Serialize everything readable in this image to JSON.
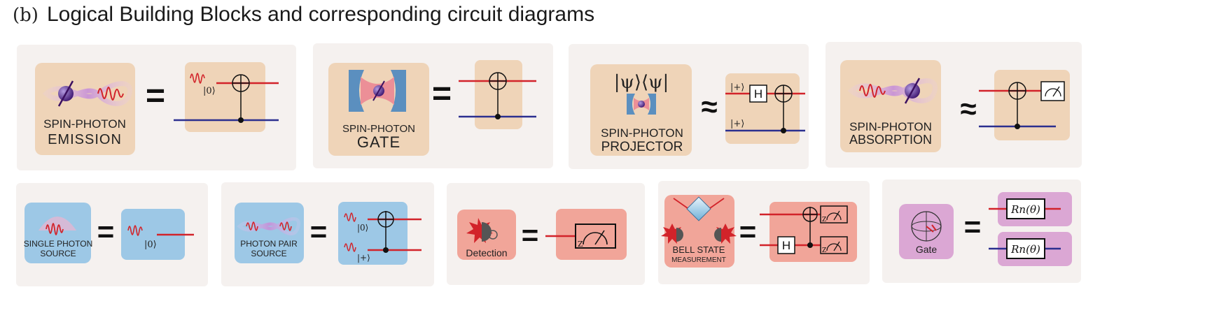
{
  "header": {
    "label": "(b)",
    "title": "Logical Building Blocks and corresponding circuit diagrams"
  },
  "colors": {
    "panel_bg": "#f5f1ef",
    "tan_box": "#efd4b8",
    "blue_box": "#9dc8e6",
    "salmon_box": "#f1a599",
    "pink_box": "#dba7d4",
    "red_wire": "#d2232a",
    "blue_wire": "#2b2f8f",
    "spin_purple": "#5b2a8c"
  },
  "top_row": [
    {
      "line1": "SPIN-PHOTON",
      "line2": "EMISSION",
      "relation": "=",
      "ket_top": "|0⟩"
    },
    {
      "line1": "SPIN-PHOTON",
      "line2": "GATE",
      "relation": "="
    },
    {
      "projector_label": "|ψ⟩⟨ψ|",
      "line1": "SPIN-PHOTON",
      "line2": "PROJECTOR",
      "relation": "≈",
      "ket_top": "|+⟩",
      "ket_bottom": "|+⟩",
      "gate": "H"
    },
    {
      "line1": "SPIN-PHOTON",
      "line2": "ABSORPTION",
      "relation": "≈"
    }
  ],
  "bottom_row": [
    {
      "line1": "SINGLE PHOTON",
      "line2": "SOURCE",
      "relation": "=",
      "ket": "|0⟩"
    },
    {
      "line1": "PHOTON PAIR",
      "line2": "SOURCE",
      "relation": "=",
      "ket_top": "|0⟩",
      "ket_bottom": "|+⟩"
    },
    {
      "label": "Detection",
      "relation": "=",
      "meter_axis": "Z"
    },
    {
      "line1": "BELL STATE",
      "line2": "MEASUREMENT",
      "relation": "=",
      "gate": "H",
      "meter_axis": "Z"
    },
    {
      "label": "Gate",
      "relation": "=",
      "rotation": "Rn(θ)"
    }
  ]
}
